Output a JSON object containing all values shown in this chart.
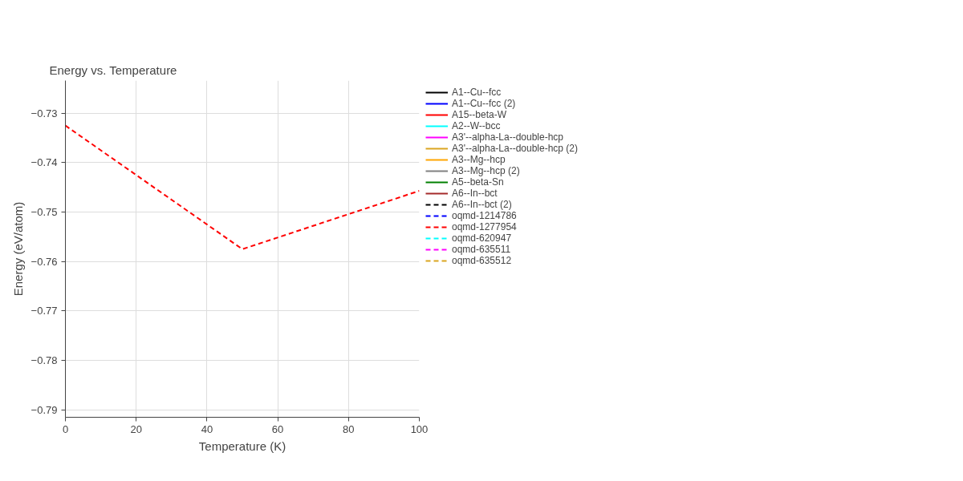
{
  "chart_data": {
    "type": "line",
    "title": "Energy vs. Temperature",
    "xlabel": "Temperature (K)",
    "ylabel": "Energy (eV/atom)",
    "x": [
      0,
      50,
      100
    ],
    "xlim": [
      0,
      100
    ],
    "xticks": [
      0,
      20,
      40,
      60,
      80,
      100
    ],
    "ylim": [
      -0.7915,
      -0.7234
    ],
    "yticks": [
      -0.79,
      -0.78,
      -0.77,
      -0.76,
      -0.75,
      -0.74,
      -0.73
    ],
    "grid": true,
    "legend": "top right",
    "marker": "none",
    "series": [
      {
        "name": "A1--Cu--fcc",
        "color": "#000000",
        "line_style": "solid",
        "values": [
          null,
          null,
          null
        ]
      },
      {
        "name": "A1--Cu--fcc (2)",
        "color": "#0000ff",
        "line_style": "solid",
        "values": [
          null,
          null,
          null
        ]
      },
      {
        "name": "A15--beta-W",
        "color": "#ff0000",
        "line_style": "solid",
        "values": [
          null,
          null,
          null
        ]
      },
      {
        "name": "A2--W--bcc",
        "color": "#00ffff",
        "line_style": "solid",
        "values": [
          null,
          null,
          null
        ]
      },
      {
        "name": "A3'--alpha-La--double-hcp",
        "color": "#ff00ff",
        "line_style": "solid",
        "values": [
          null,
          null,
          null
        ]
      },
      {
        "name": "A3'--alpha-La--double-hcp (2)",
        "color": "#daa520",
        "line_style": "solid",
        "values": [
          null,
          null,
          null
        ]
      },
      {
        "name": "A3--Mg--hcp",
        "color": "#ffa500",
        "line_style": "solid",
        "values": [
          null,
          null,
          null
        ]
      },
      {
        "name": "A3--Mg--hcp (2)",
        "color": "#808080",
        "line_style": "solid",
        "values": [
          null,
          null,
          null
        ]
      },
      {
        "name": "A5--beta-Sn",
        "color": "#008000",
        "line_style": "solid",
        "values": [
          null,
          null,
          null
        ]
      },
      {
        "name": "A6--In--bct",
        "color": "#a52a2a",
        "line_style": "solid",
        "values": [
          null,
          null,
          null
        ]
      },
      {
        "name": "A6--In--bct (2)",
        "color": "#000000",
        "line_style": "dashed",
        "values": [
          null,
          null,
          null
        ]
      },
      {
        "name": "oqmd-1214786",
        "color": "#0000ff",
        "line_style": "dashed",
        "values": [
          null,
          null,
          null
        ]
      },
      {
        "name": "oqmd-1277954",
        "color": "#ff0000",
        "line_style": "dashed",
        "values": [
          -0.7325,
          -0.7575,
          -0.7457
        ]
      },
      {
        "name": "oqmd-620947",
        "color": "#00ffff",
        "line_style": "dashed",
        "values": [
          null,
          null,
          null
        ]
      },
      {
        "name": "oqmd-635511",
        "color": "#ff00ff",
        "line_style": "dashed",
        "values": [
          null,
          null,
          null
        ]
      },
      {
        "name": "oqmd-635512",
        "color": "#daa520",
        "line_style": "dashed",
        "values": [
          null,
          null,
          null
        ]
      }
    ]
  }
}
